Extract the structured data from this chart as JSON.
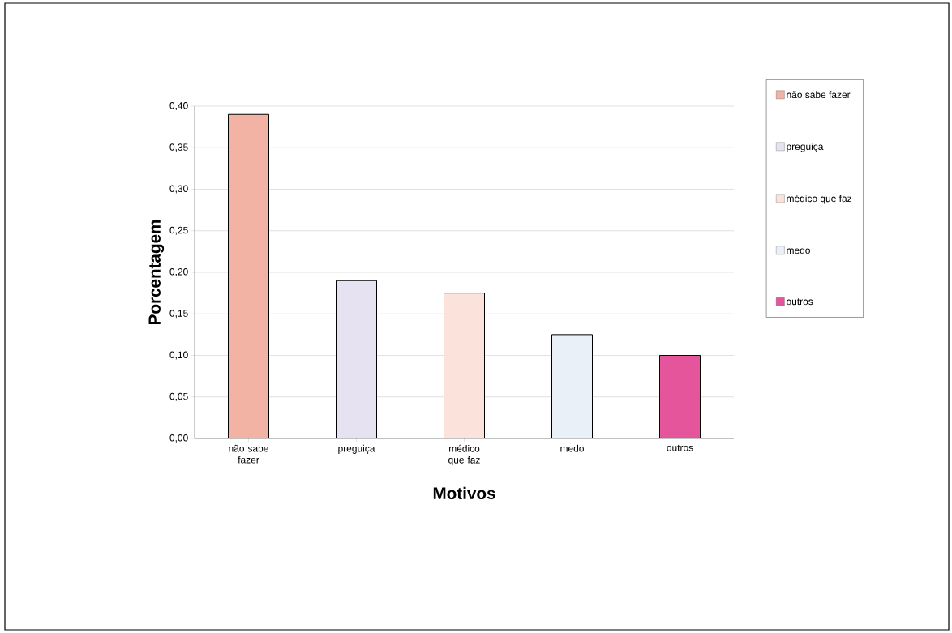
{
  "chart_data": {
    "type": "bar",
    "xlabel": "Motivos",
    "ylabel": "Porcentagem",
    "categories": [
      "não sabe fazer",
      "preguiça",
      "médico que faz",
      "medo",
      "outros"
    ],
    "series": [
      {
        "name": "não sabe fazer",
        "color": "#f2b2a4",
        "values": [
          0.39,
          null,
          null,
          null,
          null
        ]
      },
      {
        "name": "preguiça",
        "color": "#e6e2f2",
        "values": [
          null,
          0.19,
          null,
          null,
          null
        ]
      },
      {
        "name": "médico que faz",
        "color": "#fbe2da",
        "values": [
          null,
          null,
          0.175,
          null,
          null
        ]
      },
      {
        "name": "medo",
        "color": "#eaf0f8",
        "values": [
          null,
          null,
          null,
          0.125,
          null
        ]
      },
      {
        "name": "outros",
        "color": "#e5559c",
        "values": [
          null,
          null,
          null,
          null,
          0.1
        ]
      }
    ],
    "ylim": [
      0,
      0.4
    ],
    "yticks": [
      {
        "value": 0,
        "label": "0,00"
      },
      {
        "value": 0.05,
        "label": "0,05"
      },
      {
        "value": 0.1,
        "label": "0,10"
      },
      {
        "value": 0.15,
        "label": "0,15"
      },
      {
        "value": 0.2,
        "label": "0,20"
      },
      {
        "value": 0.25,
        "label": "0,25"
      },
      {
        "value": 0.3,
        "label": "0,30"
      },
      {
        "value": 0.35,
        "label": "0,35"
      },
      {
        "value": 0.4,
        "label": "0,40"
      }
    ],
    "grid": "y",
    "legend": "right"
  }
}
